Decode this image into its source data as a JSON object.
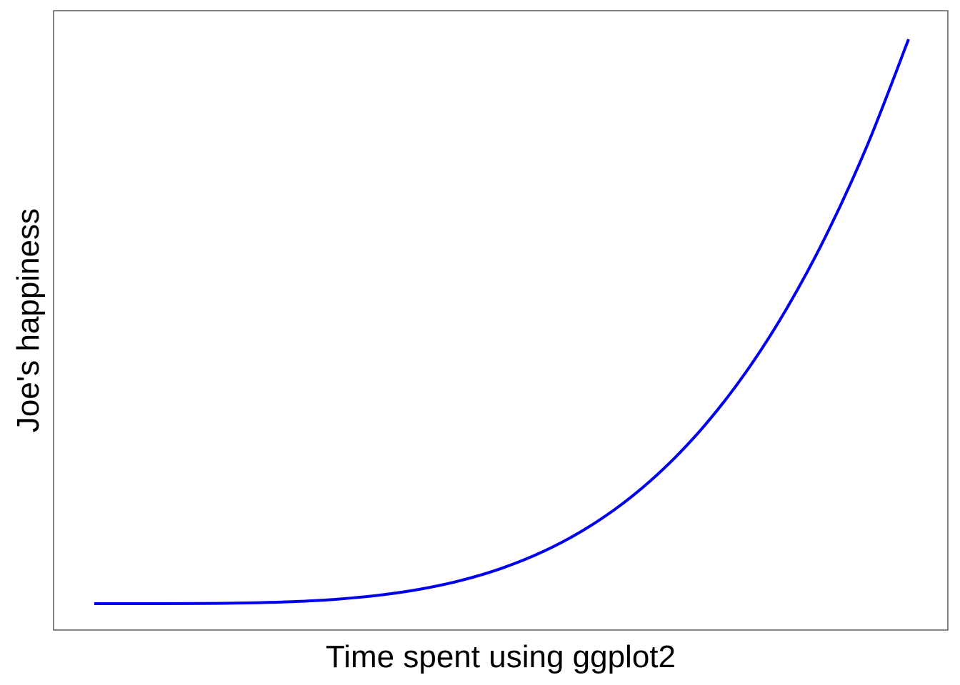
{
  "chart_data": {
    "type": "line",
    "title": "",
    "xlabel": "Time spent using ggplot2",
    "ylabel": "Joe's happiness",
    "xlim": [
      0,
      1
    ],
    "ylim": [
      0,
      1
    ],
    "grid": false,
    "legend": "none",
    "axis_ticks": false,
    "colors": {
      "line": "#0000ee",
      "panel_border": "#333333",
      "background": "#ffffff"
    },
    "series": [
      {
        "x": [
          0,
          0.05,
          0.1,
          0.15,
          0.2,
          0.25,
          0.3,
          0.35,
          0.4,
          0.45,
          0.5,
          0.55,
          0.6,
          0.65,
          0.7,
          0.75,
          0.8,
          0.85,
          0.9,
          0.95,
          1
        ],
        "values": [
          0,
          6.25e-06,
          0.0001,
          0.00051,
          0.0016,
          0.0039,
          0.0081,
          0.015,
          0.0256,
          0.041,
          0.0625,
          0.0915,
          0.1296,
          0.1785,
          0.2401,
          0.3164,
          0.4096,
          0.522,
          0.6561,
          0.8145,
          1
        ]
      }
    ]
  }
}
